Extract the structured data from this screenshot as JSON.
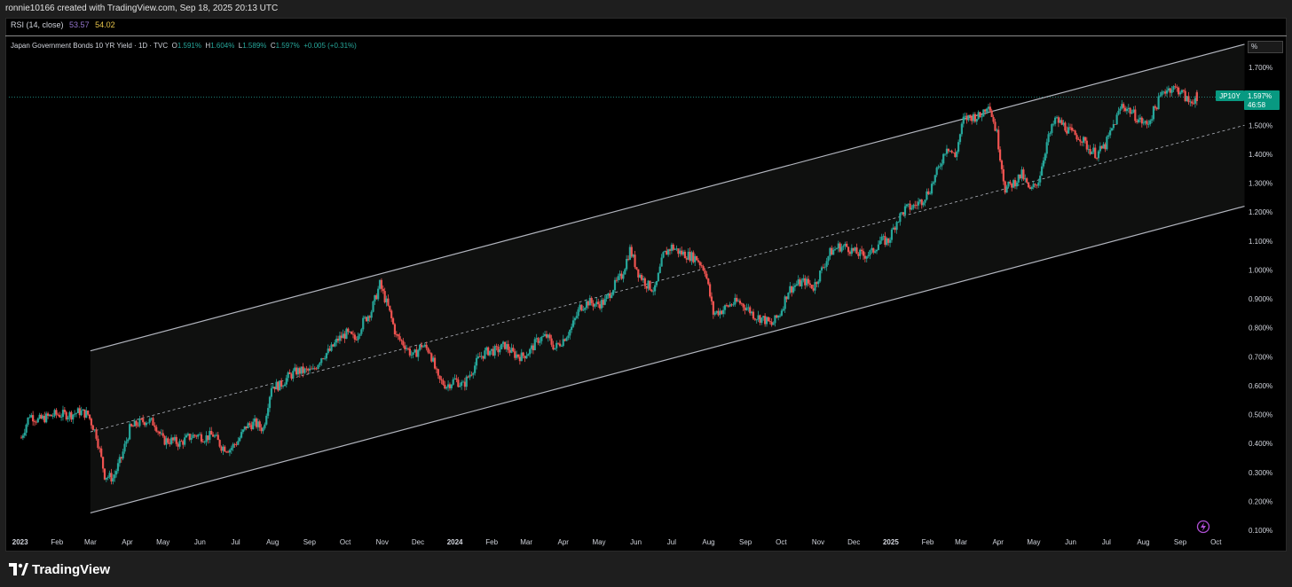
{
  "header": {
    "attribution": "ronnie10166 created with TradingView.com, Sep 18, 2025 20:13 UTC"
  },
  "indicator": {
    "name": "RSI (14, close)",
    "value1": "53.57",
    "value2": "54.02",
    "value1_color": "#9575cd",
    "value2_color": "#e6c34a"
  },
  "legend": {
    "symbol": "Japan Government Bonds 10 YR Yield · 1D · TVC",
    "o_label": "O",
    "o_value": "1.591%",
    "h_label": "H",
    "h_value": "1.604%",
    "l_label": "L",
    "l_value": "1.589%",
    "c_label": "C",
    "c_value": "1.597%",
    "change": "+0.005 (+0.31%)"
  },
  "price_axis": {
    "unit_label": "%"
  },
  "price_tag": {
    "ticker": "JP10Y",
    "price": "1.597%",
    "countdown": "46:58",
    "color": "#089981"
  },
  "footer": {
    "brand": "TradingView"
  },
  "colors": {
    "up": "#26a69a",
    "down": "#ef5350",
    "channel_line": "#b2b5be",
    "background": "#000000"
  },
  "chart_data": {
    "type": "candlestick",
    "title": "Japan Government Bonds 10 YR Yield",
    "x_tick_labels": [
      "2023",
      "Feb",
      "Mar",
      "Apr",
      "May",
      "Jun",
      "Jul",
      "Aug",
      "Sep",
      "Oct",
      "Nov",
      "Dec",
      "2024",
      "Feb",
      "Mar",
      "Apr",
      "May",
      "Jun",
      "Jul",
      "Aug",
      "Sep",
      "Oct",
      "Nov",
      "Dec",
      "2025",
      "Feb",
      "Mar",
      "Apr",
      "May",
      "Jun",
      "Jul",
      "Aug",
      "Sep",
      "Oct"
    ],
    "y_tick_labels": [
      "1.700%",
      "1.600%",
      "1.500%",
      "1.400%",
      "1.300%",
      "1.200%",
      "1.100%",
      "1.000%",
      "0.900%",
      "0.800%",
      "0.700%",
      "0.600%",
      "0.500%",
      "0.400%",
      "0.300%",
      "0.200%",
      "0.100%"
    ],
    "y_ticks": [
      1.7,
      1.6,
      1.5,
      1.4,
      1.3,
      1.2,
      1.1,
      1.0,
      0.9,
      0.8,
      0.7,
      0.6,
      0.5,
      0.4,
      0.3,
      0.2,
      0.1
    ],
    "ylim": [
      0.1,
      1.7
    ],
    "last_close": 1.597,
    "series": [
      {
        "name": "JP10Y",
        "points": [
          {
            "d": "2023-01-02",
            "v": 0.42
          },
          {
            "d": "2023-01-09",
            "v": 0.5
          },
          {
            "d": "2023-01-16",
            "v": 0.48
          },
          {
            "d": "2023-01-23",
            "v": 0.49
          },
          {
            "d": "2023-01-30",
            "v": 0.5
          },
          {
            "d": "2023-02-06",
            "v": 0.5
          },
          {
            "d": "2023-02-13",
            "v": 0.5
          },
          {
            "d": "2023-02-20",
            "v": 0.51
          },
          {
            "d": "2023-02-27",
            "v": 0.5
          },
          {
            "d": "2023-03-06",
            "v": 0.43
          },
          {
            "d": "2023-03-13",
            "v": 0.29
          },
          {
            "d": "2023-03-20",
            "v": 0.28
          },
          {
            "d": "2023-03-27",
            "v": 0.35
          },
          {
            "d": "2023-04-03",
            "v": 0.45
          },
          {
            "d": "2023-04-10",
            "v": 0.47
          },
          {
            "d": "2023-04-17",
            "v": 0.48
          },
          {
            "d": "2023-04-24",
            "v": 0.47
          },
          {
            "d": "2023-05-01",
            "v": 0.41
          },
          {
            "d": "2023-05-08",
            "v": 0.41
          },
          {
            "d": "2023-05-15",
            "v": 0.4
          },
          {
            "d": "2023-05-22",
            "v": 0.42
          },
          {
            "d": "2023-05-29",
            "v": 0.43
          },
          {
            "d": "2023-06-05",
            "v": 0.42
          },
          {
            "d": "2023-06-12",
            "v": 0.43
          },
          {
            "d": "2023-06-19",
            "v": 0.39
          },
          {
            "d": "2023-06-26",
            "v": 0.38
          },
          {
            "d": "2023-07-03",
            "v": 0.41
          },
          {
            "d": "2023-07-10",
            "v": 0.46
          },
          {
            "d": "2023-07-17",
            "v": 0.47
          },
          {
            "d": "2023-07-24",
            "v": 0.45
          },
          {
            "d": "2023-07-31",
            "v": 0.6
          },
          {
            "d": "2023-08-07",
            "v": 0.6
          },
          {
            "d": "2023-08-14",
            "v": 0.63
          },
          {
            "d": "2023-08-21",
            "v": 0.65
          },
          {
            "d": "2023-08-28",
            "v": 0.65
          },
          {
            "d": "2023-09-04",
            "v": 0.65
          },
          {
            "d": "2023-09-11",
            "v": 0.7
          },
          {
            "d": "2023-09-18",
            "v": 0.72
          },
          {
            "d": "2023-09-25",
            "v": 0.76
          },
          {
            "d": "2023-10-02",
            "v": 0.78
          },
          {
            "d": "2023-10-09",
            "v": 0.76
          },
          {
            "d": "2023-10-16",
            "v": 0.82
          },
          {
            "d": "2023-10-23",
            "v": 0.86
          },
          {
            "d": "2023-10-30",
            "v": 0.95
          },
          {
            "d": "2023-11-06",
            "v": 0.87
          },
          {
            "d": "2023-11-13",
            "v": 0.77
          },
          {
            "d": "2023-11-20",
            "v": 0.74
          },
          {
            "d": "2023-11-27",
            "v": 0.7
          },
          {
            "d": "2023-12-04",
            "v": 0.74
          },
          {
            "d": "2023-12-11",
            "v": 0.72
          },
          {
            "d": "2023-12-18",
            "v": 0.62
          },
          {
            "d": "2023-12-25",
            "v": 0.6
          },
          {
            "d": "2024-01-01",
            "v": 0.62
          },
          {
            "d": "2024-01-08",
            "v": 0.6
          },
          {
            "d": "2024-01-15",
            "v": 0.65
          },
          {
            "d": "2024-01-22",
            "v": 0.7
          },
          {
            "d": "2024-01-29",
            "v": 0.72
          },
          {
            "d": "2024-02-05",
            "v": 0.72
          },
          {
            "d": "2024-02-12",
            "v": 0.74
          },
          {
            "d": "2024-02-19",
            "v": 0.71
          },
          {
            "d": "2024-02-26",
            "v": 0.7
          },
          {
            "d": "2024-03-04",
            "v": 0.72
          },
          {
            "d": "2024-03-11",
            "v": 0.76
          },
          {
            "d": "2024-03-18",
            "v": 0.77
          },
          {
            "d": "2024-03-25",
            "v": 0.73
          },
          {
            "d": "2024-04-01",
            "v": 0.76
          },
          {
            "d": "2024-04-08",
            "v": 0.8
          },
          {
            "d": "2024-04-15",
            "v": 0.87
          },
          {
            "d": "2024-04-22",
            "v": 0.89
          },
          {
            "d": "2024-04-29",
            "v": 0.88
          },
          {
            "d": "2024-05-06",
            "v": 0.89
          },
          {
            "d": "2024-05-13",
            "v": 0.94
          },
          {
            "d": "2024-05-20",
            "v": 0.98
          },
          {
            "d": "2024-05-27",
            "v": 1.07
          },
          {
            "d": "2024-06-03",
            "v": 0.99
          },
          {
            "d": "2024-06-10",
            "v": 0.95
          },
          {
            "d": "2024-06-17",
            "v": 0.93
          },
          {
            "d": "2024-06-24",
            "v": 1.05
          },
          {
            "d": "2024-07-01",
            "v": 1.08
          },
          {
            "d": "2024-07-08",
            "v": 1.06
          },
          {
            "d": "2024-07-15",
            "v": 1.05
          },
          {
            "d": "2024-07-22",
            "v": 1.04
          },
          {
            "d": "2024-07-29",
            "v": 1.0
          },
          {
            "d": "2024-08-05",
            "v": 0.85
          },
          {
            "d": "2024-08-12",
            "v": 0.86
          },
          {
            "d": "2024-08-19",
            "v": 0.88
          },
          {
            "d": "2024-08-26",
            "v": 0.89
          },
          {
            "d": "2024-09-02",
            "v": 0.87
          },
          {
            "d": "2024-09-09",
            "v": 0.84
          },
          {
            "d": "2024-09-16",
            "v": 0.83
          },
          {
            "d": "2024-09-23",
            "v": 0.81
          },
          {
            "d": "2024-09-30",
            "v": 0.85
          },
          {
            "d": "2024-10-07",
            "v": 0.93
          },
          {
            "d": "2024-10-14",
            "v": 0.95
          },
          {
            "d": "2024-10-21",
            "v": 0.96
          },
          {
            "d": "2024-10-28",
            "v": 0.94
          },
          {
            "d": "2024-11-04",
            "v": 1.0
          },
          {
            "d": "2024-11-11",
            "v": 1.06
          },
          {
            "d": "2024-11-18",
            "v": 1.08
          },
          {
            "d": "2024-11-25",
            "v": 1.08
          },
          {
            "d": "2024-12-02",
            "v": 1.06
          },
          {
            "d": "2024-12-09",
            "v": 1.05
          },
          {
            "d": "2024-12-16",
            "v": 1.06
          },
          {
            "d": "2024-12-23",
            "v": 1.1
          },
          {
            "d": "2024-12-30",
            "v": 1.1
          },
          {
            "d": "2025-01-06",
            "v": 1.17
          },
          {
            "d": "2025-01-13",
            "v": 1.21
          },
          {
            "d": "2025-01-20",
            "v": 1.22
          },
          {
            "d": "2025-01-27",
            "v": 1.24
          },
          {
            "d": "2025-02-03",
            "v": 1.28
          },
          {
            "d": "2025-02-10",
            "v": 1.35
          },
          {
            "d": "2025-02-17",
            "v": 1.43
          },
          {
            "d": "2025-02-24",
            "v": 1.39
          },
          {
            "d": "2025-03-03",
            "v": 1.52
          },
          {
            "d": "2025-03-10",
            "v": 1.53
          },
          {
            "d": "2025-03-17",
            "v": 1.53
          },
          {
            "d": "2025-03-24",
            "v": 1.58
          },
          {
            "d": "2025-03-31",
            "v": 1.47
          },
          {
            "d": "2025-04-07",
            "v": 1.28
          },
          {
            "d": "2025-04-14",
            "v": 1.3
          },
          {
            "d": "2025-04-21",
            "v": 1.33
          },
          {
            "d": "2025-04-28",
            "v": 1.27
          },
          {
            "d": "2025-05-05",
            "v": 1.31
          },
          {
            "d": "2025-05-12",
            "v": 1.44
          },
          {
            "d": "2025-05-19",
            "v": 1.52
          },
          {
            "d": "2025-05-26",
            "v": 1.5
          },
          {
            "d": "2025-06-02",
            "v": 1.47
          },
          {
            "d": "2025-06-09",
            "v": 1.46
          },
          {
            "d": "2025-06-16",
            "v": 1.42
          },
          {
            "d": "2025-06-23",
            "v": 1.4
          },
          {
            "d": "2025-06-30",
            "v": 1.43
          },
          {
            "d": "2025-07-07",
            "v": 1.5
          },
          {
            "d": "2025-07-14",
            "v": 1.57
          },
          {
            "d": "2025-07-21",
            "v": 1.55
          },
          {
            "d": "2025-07-28",
            "v": 1.52
          },
          {
            "d": "2025-08-04",
            "v": 1.5
          },
          {
            "d": "2025-08-11",
            "v": 1.56
          },
          {
            "d": "2025-08-18",
            "v": 1.62
          },
          {
            "d": "2025-08-25",
            "v": 1.63
          },
          {
            "d": "2025-09-01",
            "v": 1.62
          },
          {
            "d": "2025-09-08",
            "v": 1.58
          },
          {
            "d": "2025-09-15",
            "v": 1.597
          }
        ]
      }
    ],
    "channel": {
      "upper": [
        {
          "d": "2023-03-01",
          "v": 0.72
        },
        {
          "d": "2025-10-25",
          "v": 1.78
        }
      ],
      "middle": [
        {
          "d": "2023-03-01",
          "v": 0.44
        },
        {
          "d": "2025-10-25",
          "v": 1.5
        }
      ],
      "lower": [
        {
          "d": "2023-03-01",
          "v": 0.16
        },
        {
          "d": "2025-10-25",
          "v": 1.22
        }
      ]
    }
  }
}
